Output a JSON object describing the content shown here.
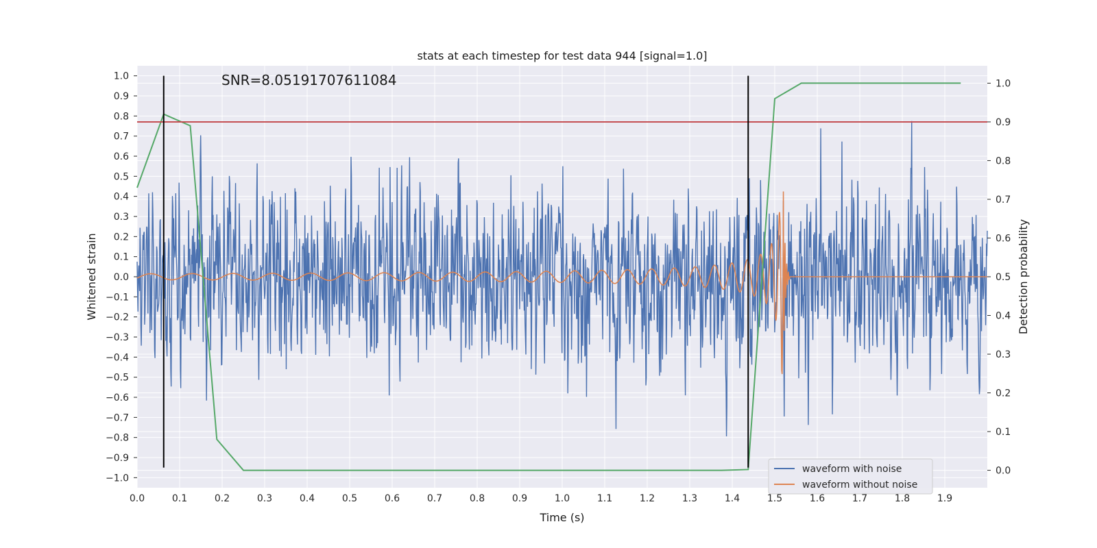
{
  "chart_data": {
    "type": "line",
    "title": "stats at each timestep for test data 944 [signal=1.0]",
    "xlabel": "Time (s)",
    "ylabel": "Whitened strain",
    "y2label": "Detection probability",
    "xlim": [
      0.0,
      2.0
    ],
    "ylim": [
      -1.05,
      1.05
    ],
    "y2lim": [
      -0.045,
      1.045
    ],
    "x_ticks": [
      0.0,
      0.1,
      0.2,
      0.3,
      0.4,
      0.5,
      0.6,
      0.7,
      0.8,
      0.9,
      1.0,
      1.1,
      1.2,
      1.3,
      1.4,
      1.5,
      1.6,
      1.7,
      1.8,
      1.9
    ],
    "x_tick_labels": [
      "0.0",
      "0.1",
      "0.2",
      "0.3",
      "0.4",
      "0.5",
      "0.6",
      "0.7",
      "0.8",
      "0.9",
      "1.0",
      "1.1",
      "1.2",
      "1.3",
      "1.4",
      "1.5",
      "1.6",
      "1.7",
      "1.8",
      "1.9"
    ],
    "y_ticks": [
      1.0,
      0.9,
      0.8,
      0.7,
      0.6,
      0.5,
      0.4,
      0.3,
      0.2,
      0.1,
      0.0,
      -0.1,
      -0.2,
      -0.3,
      -0.4,
      -0.5,
      -0.6,
      -0.7,
      -0.8,
      -0.9,
      -1.0
    ],
    "y_tick_labels": [
      "1.0",
      "0.9",
      "0.8",
      "0.7",
      "0.6",
      "0.5",
      "0.4",
      "0.3",
      "0.2",
      "0.1",
      "0.0",
      "−0.1",
      "−0.2",
      "−0.3",
      "−0.4",
      "−0.5",
      "−0.6",
      "−0.7",
      "−0.8",
      "−0.9",
      "−1.0"
    ],
    "y2_ticks": [
      1.0,
      0.9,
      0.8,
      0.7,
      0.6,
      0.5,
      0.4,
      0.3,
      0.2,
      0.1,
      0.0
    ],
    "y2_tick_labels": [
      "1.0",
      "0.9",
      "0.8",
      "0.7",
      "0.6",
      "0.5",
      "0.4",
      "0.3",
      "0.2",
      "0.1",
      "0.0"
    ],
    "annotation": "SNR=8.05191707611084",
    "threshold": {
      "axis": "y2",
      "value": 0.9,
      "color": "#c44e52"
    },
    "vertical_markers": [
      {
        "x": 0.0625,
        "y": [
          -0.95,
          1.0
        ],
        "color": "#000000"
      },
      {
        "x": 1.4375,
        "y": [
          -0.95,
          1.0
        ],
        "color": "#000000"
      }
    ],
    "series": [
      {
        "name": "waveform with noise",
        "axis": "y",
        "color": "#4c72b0",
        "kind": "noise",
        "x_range": [
          0.0,
          2.0
        ],
        "n_points": 2048,
        "std": 0.22,
        "seed": 944
      },
      {
        "name": "waveform without noise",
        "axis": "y",
        "color": "#dd8452",
        "kind": "chirp",
        "x_range": [
          0.0,
          2.0
        ],
        "n_points": 2048,
        "merger_time": 1.52,
        "start_amplitude": 0.015,
        "peak_amplitude": 0.5,
        "start_frequency": 10,
        "ringdown_end": 1.535
      },
      {
        "name": "detection probability",
        "axis": "y2",
        "color": "#55a868",
        "kind": "line",
        "x": [
          0.0,
          0.0625,
          0.125,
          0.1875,
          0.25,
          0.3125,
          0.375,
          0.4375,
          0.5,
          0.5625,
          0.625,
          0.6875,
          0.75,
          0.8125,
          0.875,
          0.9375,
          1.0,
          1.0625,
          1.125,
          1.1875,
          1.25,
          1.3125,
          1.375,
          1.4375,
          1.5,
          1.5625,
          1.625,
          1.6875,
          1.75,
          1.8125,
          1.875,
          1.9375
        ],
        "y": [
          0.73,
          0.92,
          0.89,
          0.08,
          0.0,
          0.0,
          0.0,
          0.0,
          0.0,
          0.0,
          0.0,
          0.0,
          0.0,
          0.0,
          0.0,
          0.0,
          0.0,
          0.0,
          0.0,
          0.0,
          0.0,
          0.0,
          0.0,
          0.002,
          0.96,
          1.0,
          1.0,
          1.0,
          1.0,
          1.0,
          1.0,
          1.0
        ]
      }
    ],
    "legend": {
      "position": "lower-right",
      "entries": [
        {
          "label": "waveform with noise",
          "color": "#4c72b0"
        },
        {
          "label": "waveform without noise",
          "color": "#dd8452"
        }
      ]
    },
    "grid": true,
    "style": "seaborn-darkgrid"
  }
}
